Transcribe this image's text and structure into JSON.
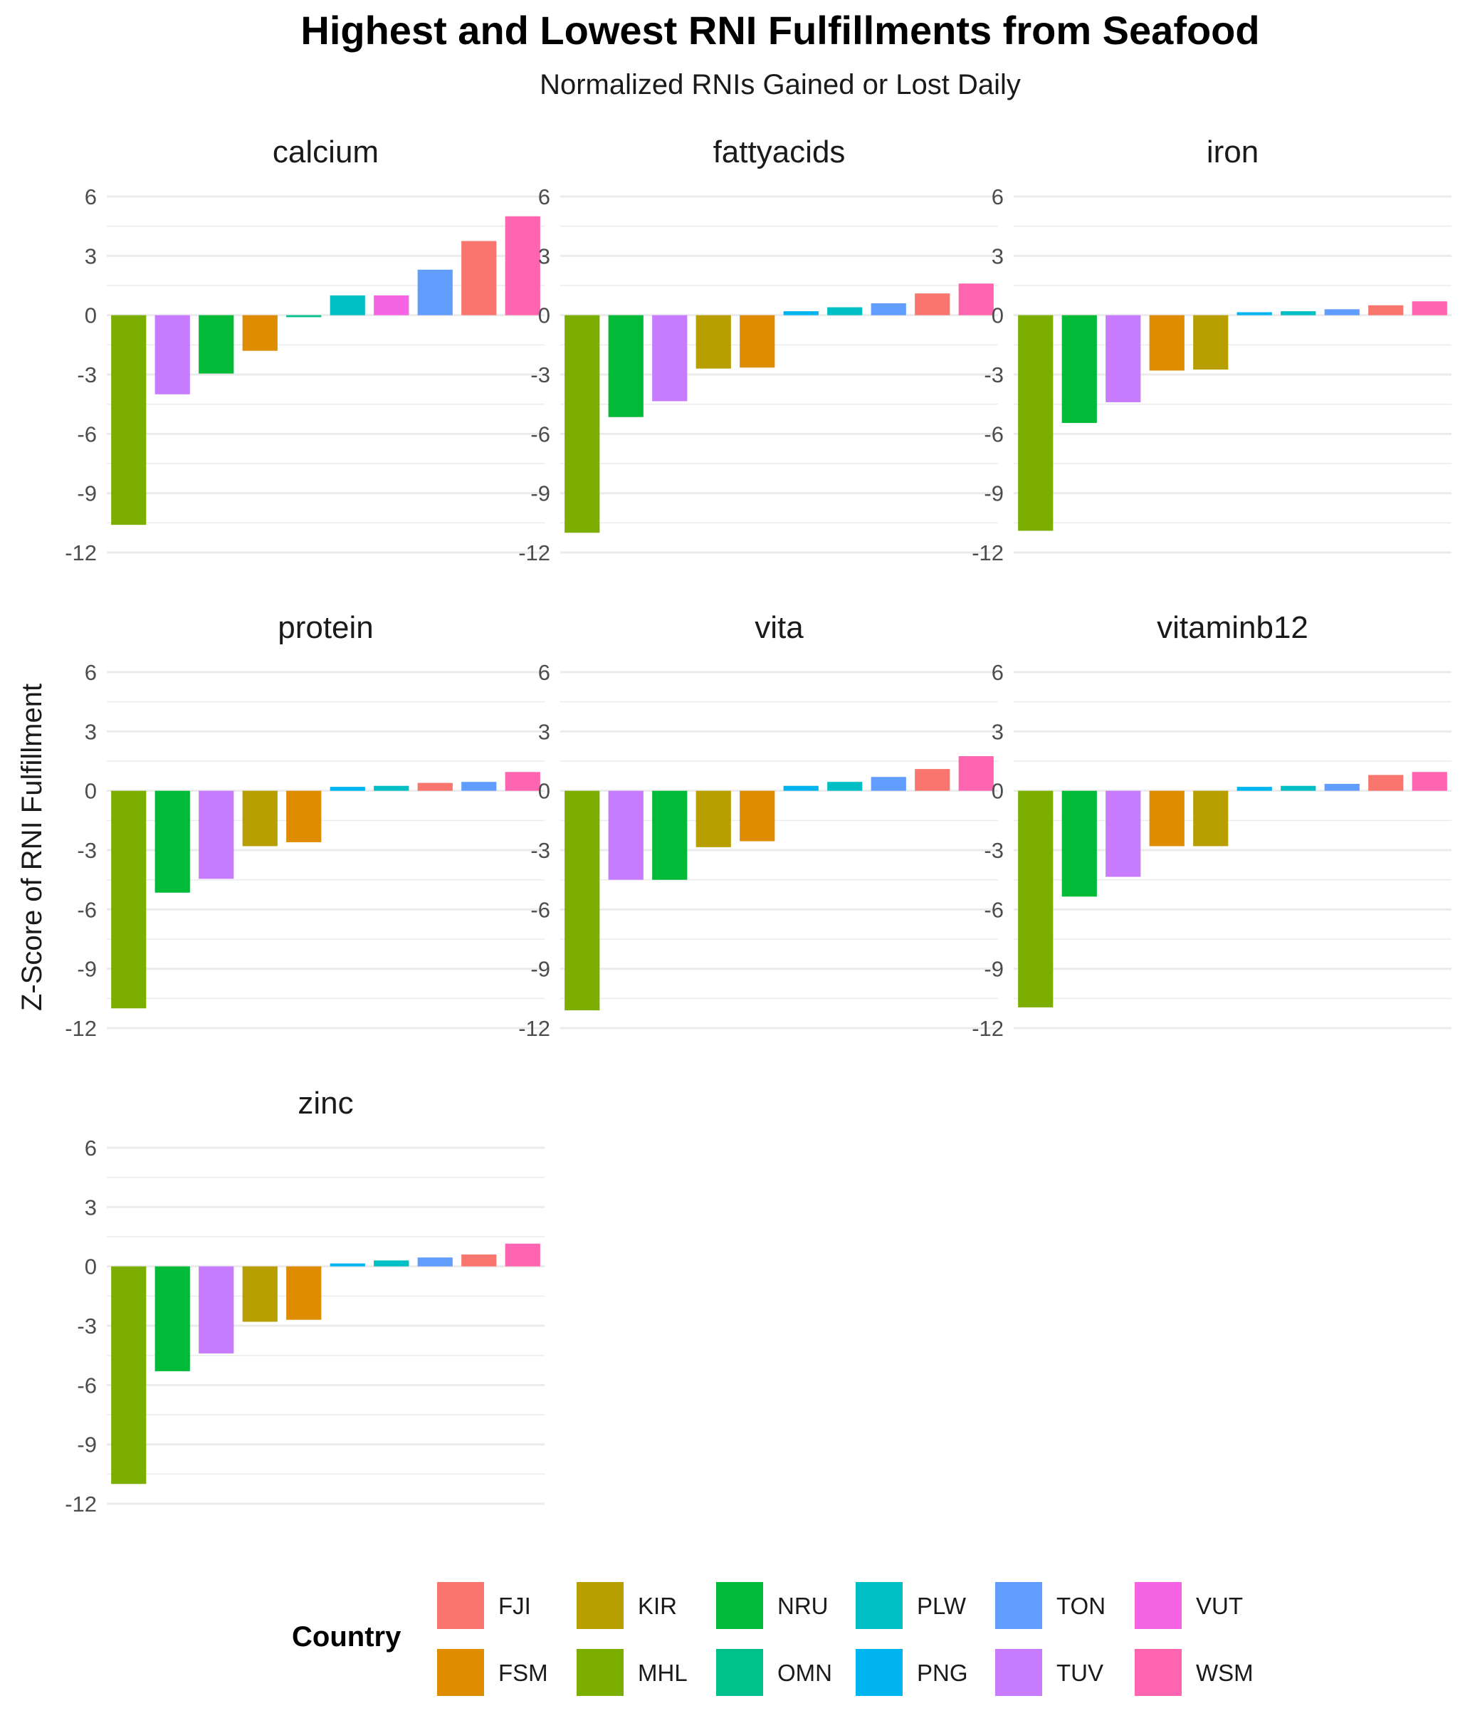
{
  "chart_data": {
    "type": "bar",
    "title": "Highest and Lowest RNI Fulfillments from Seafood",
    "subtitle": "Normalized RNIs Gained or Lost Daily",
    "ylabel": "Z-Score of RNI Fulfillment",
    "xlabel": "",
    "ylim": [
      -12,
      6
    ],
    "yticks": [
      6,
      3,
      0,
      -3,
      -6,
      -9,
      -12
    ],
    "ytick_labels": [
      "6",
      "3",
      "0",
      "-3",
      "-6",
      "-9",
      "-12"
    ],
    "grid": true,
    "legend": {
      "title": "Country",
      "position": "bottom",
      "entries": [
        {
          "name": "FJI",
          "color": "#F8766D"
        },
        {
          "name": "FSM",
          "color": "#DE8C00"
        },
        {
          "name": "KIR",
          "color": "#B79F00"
        },
        {
          "name": "MHL",
          "color": "#7CAE00"
        },
        {
          "name": "NRU",
          "color": "#00BA38"
        },
        {
          "name": "OMN",
          "color": "#00C08B"
        },
        {
          "name": "PLW",
          "color": "#00BFC4"
        },
        {
          "name": "PNG",
          "color": "#00B4F0"
        },
        {
          "name": "TON",
          "color": "#619CFF"
        },
        {
          "name": "TUV",
          "color": "#C77CFF"
        },
        {
          "name": "VUT",
          "color": "#F564E3"
        },
        {
          "name": "WSM",
          "color": "#FF64B0"
        }
      ]
    },
    "panels": [
      {
        "name": "calcium",
        "bars": [
          {
            "country": "MHL",
            "value": -10.6
          },
          {
            "country": "TUV",
            "value": -4.0
          },
          {
            "country": "NRU",
            "value": -2.95
          },
          {
            "country": "FSM",
            "value": -1.8
          },
          {
            "country": "OMN",
            "value": -0.1
          },
          {
            "country": "PLW",
            "value": 1.0
          },
          {
            "country": "VUT",
            "value": 1.0
          },
          {
            "country": "TON",
            "value": 2.3
          },
          {
            "country": "FJI",
            "value": 3.75
          },
          {
            "country": "WSM",
            "value": 5.0
          }
        ]
      },
      {
        "name": "fattyacids",
        "bars": [
          {
            "country": "MHL",
            "value": -11.0
          },
          {
            "country": "NRU",
            "value": -5.15
          },
          {
            "country": "TUV",
            "value": -4.35
          },
          {
            "country": "KIR",
            "value": -2.7
          },
          {
            "country": "FSM",
            "value": -2.65
          },
          {
            "country": "PNG",
            "value": 0.2
          },
          {
            "country": "PLW",
            "value": 0.4
          },
          {
            "country": "TON",
            "value": 0.6
          },
          {
            "country": "FJI",
            "value": 1.1
          },
          {
            "country": "WSM",
            "value": 1.6
          }
        ]
      },
      {
        "name": "iron",
        "bars": [
          {
            "country": "MHL",
            "value": -10.9
          },
          {
            "country": "NRU",
            "value": -5.45
          },
          {
            "country": "TUV",
            "value": -4.4
          },
          {
            "country": "FSM",
            "value": -2.8
          },
          {
            "country": "KIR",
            "value": -2.75
          },
          {
            "country": "PNG",
            "value": 0.15
          },
          {
            "country": "PLW",
            "value": 0.2
          },
          {
            "country": "TON",
            "value": 0.3
          },
          {
            "country": "FJI",
            "value": 0.5
          },
          {
            "country": "WSM",
            "value": 0.7
          }
        ]
      },
      {
        "name": "protein",
        "bars": [
          {
            "country": "MHL",
            "value": -11.0
          },
          {
            "country": "NRU",
            "value": -5.15
          },
          {
            "country": "TUV",
            "value": -4.45
          },
          {
            "country": "KIR",
            "value": -2.8
          },
          {
            "country": "FSM",
            "value": -2.6
          },
          {
            "country": "PNG",
            "value": 0.2
          },
          {
            "country": "PLW",
            "value": 0.25
          },
          {
            "country": "FJI",
            "value": 0.4
          },
          {
            "country": "TON",
            "value": 0.45
          },
          {
            "country": "WSM",
            "value": 0.95
          }
        ]
      },
      {
        "name": "vita",
        "bars": [
          {
            "country": "MHL",
            "value": -11.1
          },
          {
            "country": "TUV",
            "value": -4.5
          },
          {
            "country": "NRU",
            "value": -4.5
          },
          {
            "country": "KIR",
            "value": -2.85
          },
          {
            "country": "FSM",
            "value": -2.55
          },
          {
            "country": "PNG",
            "value": 0.25
          },
          {
            "country": "PLW",
            "value": 0.45
          },
          {
            "country": "TON",
            "value": 0.7
          },
          {
            "country": "FJI",
            "value": 1.1
          },
          {
            "country": "WSM",
            "value": 1.75
          }
        ]
      },
      {
        "name": "vitaminb12",
        "bars": [
          {
            "country": "MHL",
            "value": -10.95
          },
          {
            "country": "NRU",
            "value": -5.35
          },
          {
            "country": "TUV",
            "value": -4.35
          },
          {
            "country": "FSM",
            "value": -2.8
          },
          {
            "country": "KIR",
            "value": -2.8
          },
          {
            "country": "PNG",
            "value": 0.2
          },
          {
            "country": "PLW",
            "value": 0.25
          },
          {
            "country": "TON",
            "value": 0.35
          },
          {
            "country": "FJI",
            "value": 0.8
          },
          {
            "country": "WSM",
            "value": 0.95
          }
        ]
      },
      {
        "name": "zinc",
        "bars": [
          {
            "country": "MHL",
            "value": -11.0
          },
          {
            "country": "NRU",
            "value": -5.3
          },
          {
            "country": "TUV",
            "value": -4.4
          },
          {
            "country": "KIR",
            "value": -2.8
          },
          {
            "country": "FSM",
            "value": -2.7
          },
          {
            "country": "PNG",
            "value": 0.15
          },
          {
            "country": "PLW",
            "value": 0.3
          },
          {
            "country": "TON",
            "value": 0.45
          },
          {
            "country": "FJI",
            "value": 0.6
          },
          {
            "country": "WSM",
            "value": 1.15
          }
        ]
      }
    ]
  }
}
